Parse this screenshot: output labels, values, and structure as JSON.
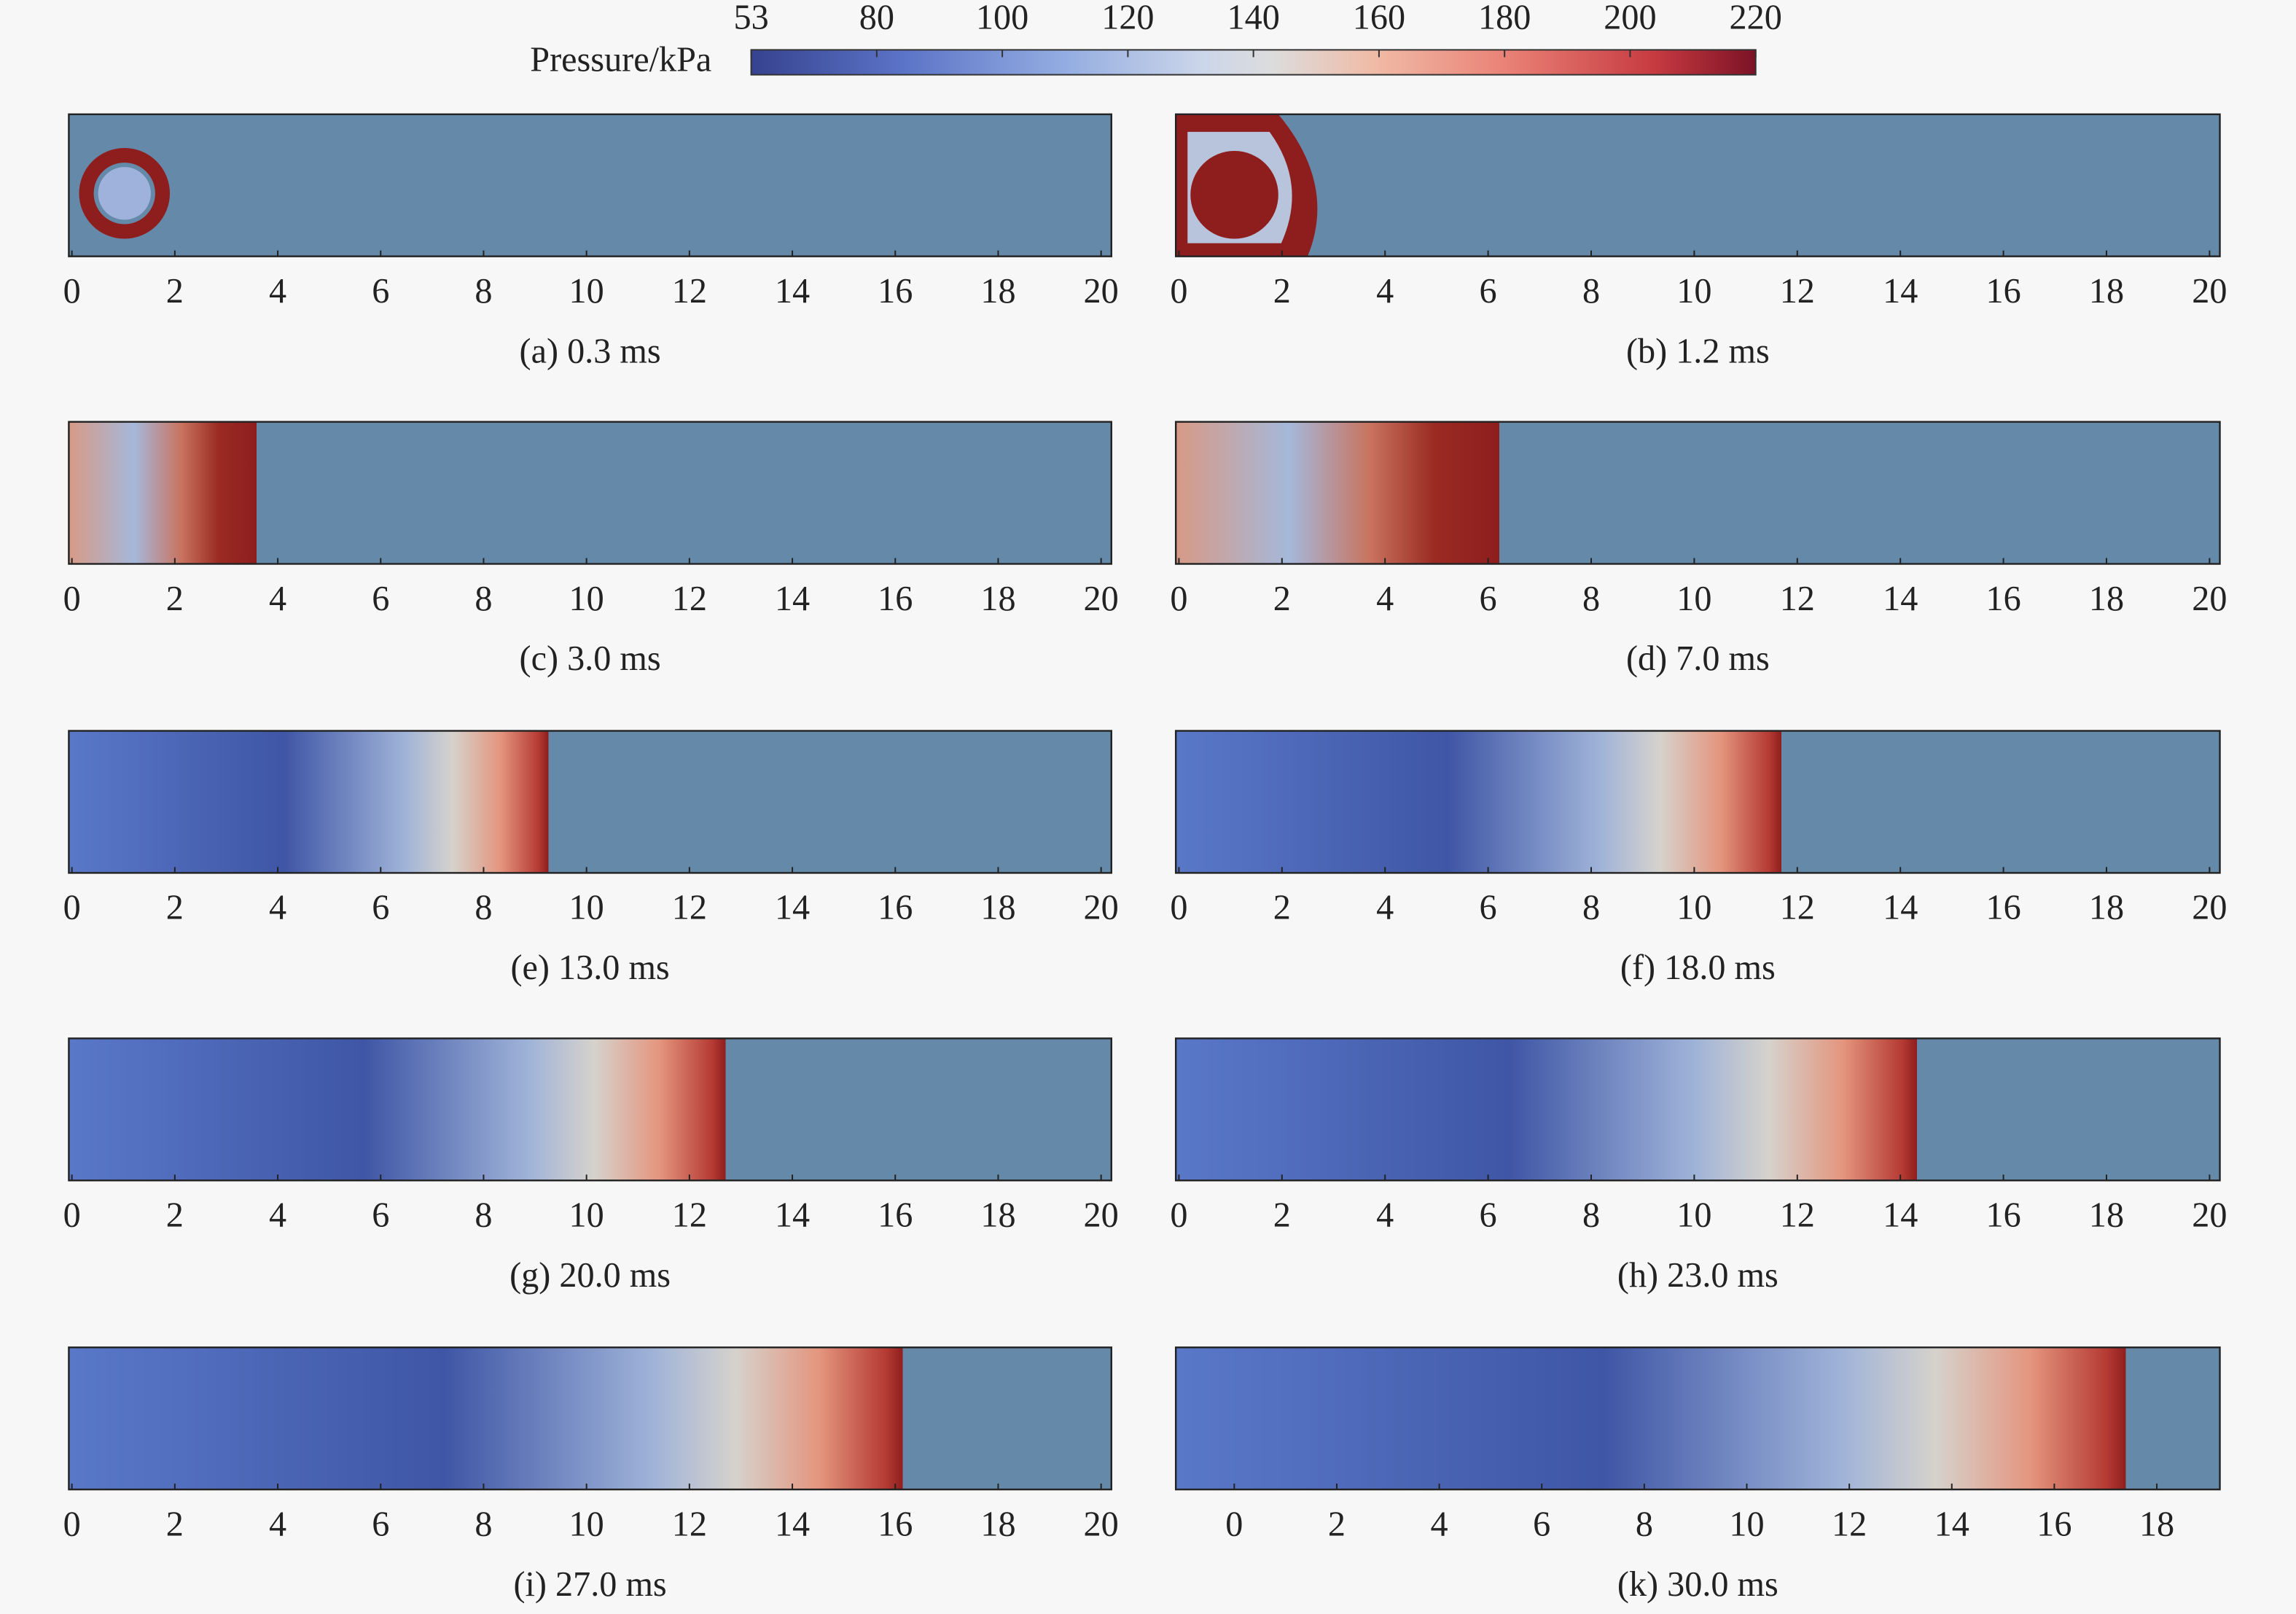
{
  "colorbar": {
    "label": "Pressure/kPa",
    "ticks": [
      53,
      80,
      100,
      120,
      140,
      160,
      180,
      200,
      220
    ]
  },
  "panels": [
    {
      "caption": "(a) 0.3 ms",
      "xlim": [
        -0.06,
        20.2
      ],
      "xticks": [
        0,
        2,
        4,
        6,
        8,
        10,
        12,
        14,
        16,
        18,
        20
      ]
    },
    {
      "caption": "(b) 1.2 ms",
      "xlim": [
        -0.06,
        20.2
      ],
      "xticks": [
        0,
        2,
        4,
        6,
        8,
        10,
        12,
        14,
        16,
        18,
        20
      ]
    },
    {
      "caption": "(c) 3.0 ms",
      "xlim": [
        -0.06,
        20.2
      ],
      "xticks": [
        0,
        2,
        4,
        6,
        8,
        10,
        12,
        14,
        16,
        18,
        20
      ]
    },
    {
      "caption": "(d) 7.0 ms",
      "xlim": [
        -0.06,
        20.2
      ],
      "xticks": [
        0,
        2,
        4,
        6,
        8,
        10,
        12,
        14,
        16,
        18,
        20
      ]
    },
    {
      "caption": "(e) 13.0 ms",
      "xlim": [
        -0.06,
        20.2
      ],
      "xticks": [
        0,
        2,
        4,
        6,
        8,
        10,
        12,
        14,
        16,
        18,
        20
      ]
    },
    {
      "caption": "(f) 18.0 ms",
      "xlim": [
        -0.06,
        20.2
      ],
      "xticks": [
        0,
        2,
        4,
        6,
        8,
        10,
        12,
        14,
        16,
        18,
        20
      ]
    },
    {
      "caption": "(g) 20.0 ms",
      "xlim": [
        -0.06,
        20.2
      ],
      "xticks": [
        0,
        2,
        4,
        6,
        8,
        10,
        12,
        14,
        16,
        18,
        20
      ]
    },
    {
      "caption": "(h) 23.0 ms",
      "xlim": [
        -0.06,
        20.2
      ],
      "xticks": [
        0,
        2,
        4,
        6,
        8,
        10,
        12,
        14,
        16,
        18,
        20
      ]
    },
    {
      "caption": "(i) 27.0 ms",
      "xlim": [
        -0.06,
        20.2
      ],
      "xticks": [
        0,
        2,
        4,
        6,
        8,
        10,
        12,
        14,
        16,
        18,
        20
      ]
    },
    {
      "caption": "(k) 30.0 ms",
      "xlim": [
        -1.14,
        19.23
      ],
      "xticks": [
        0,
        2,
        4,
        6,
        8,
        10,
        12,
        14,
        16,
        18
      ]
    }
  ]
}
